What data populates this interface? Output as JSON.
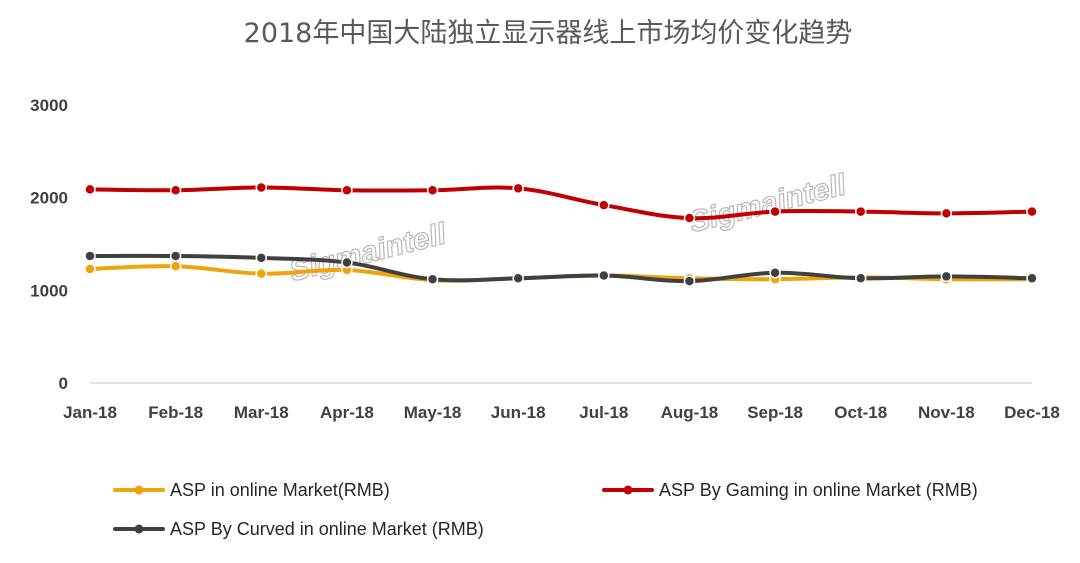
{
  "chart_data": {
    "type": "line",
    "title": "2018年中国大陆独立显示器线上市场均价变化趋势",
    "categories": [
      "Jan-18",
      "Feb-18",
      "Mar-18",
      "Apr-18",
      "May-18",
      "Jun-18",
      "Jul-18",
      "Aug-18",
      "Sep-18",
      "Oct-18",
      "Nov-18",
      "Dec-18"
    ],
    "ylim": [
      0,
      3000
    ],
    "yticks": [
      "0",
      "1000",
      "2000",
      "3000"
    ],
    "grid": false,
    "legend_position": "bottom",
    "series": [
      {
        "name": "ASP in online Market(RMB)",
        "color": "#f0a30a",
        "values": [
          1230,
          1260,
          1180,
          1220,
          1110,
          1130,
          1160,
          1130,
          1120,
          1140,
          1120,
          1120
        ]
      },
      {
        "name": "ASP By Gaming in online Market (RMB)",
        "color": "#c00000",
        "values": [
          2090,
          2080,
          2110,
          2080,
          2080,
          2100,
          1920,
          1780,
          1850,
          1850,
          1830,
          1850
        ]
      },
      {
        "name": "ASP By Curved in online Market (RMB)",
        "color": "#404040",
        "values": [
          1370,
          1370,
          1350,
          1300,
          1120,
          1130,
          1160,
          1100,
          1190,
          1130,
          1150,
          1130
        ]
      }
    ],
    "watermark": "Sigmaintell"
  }
}
